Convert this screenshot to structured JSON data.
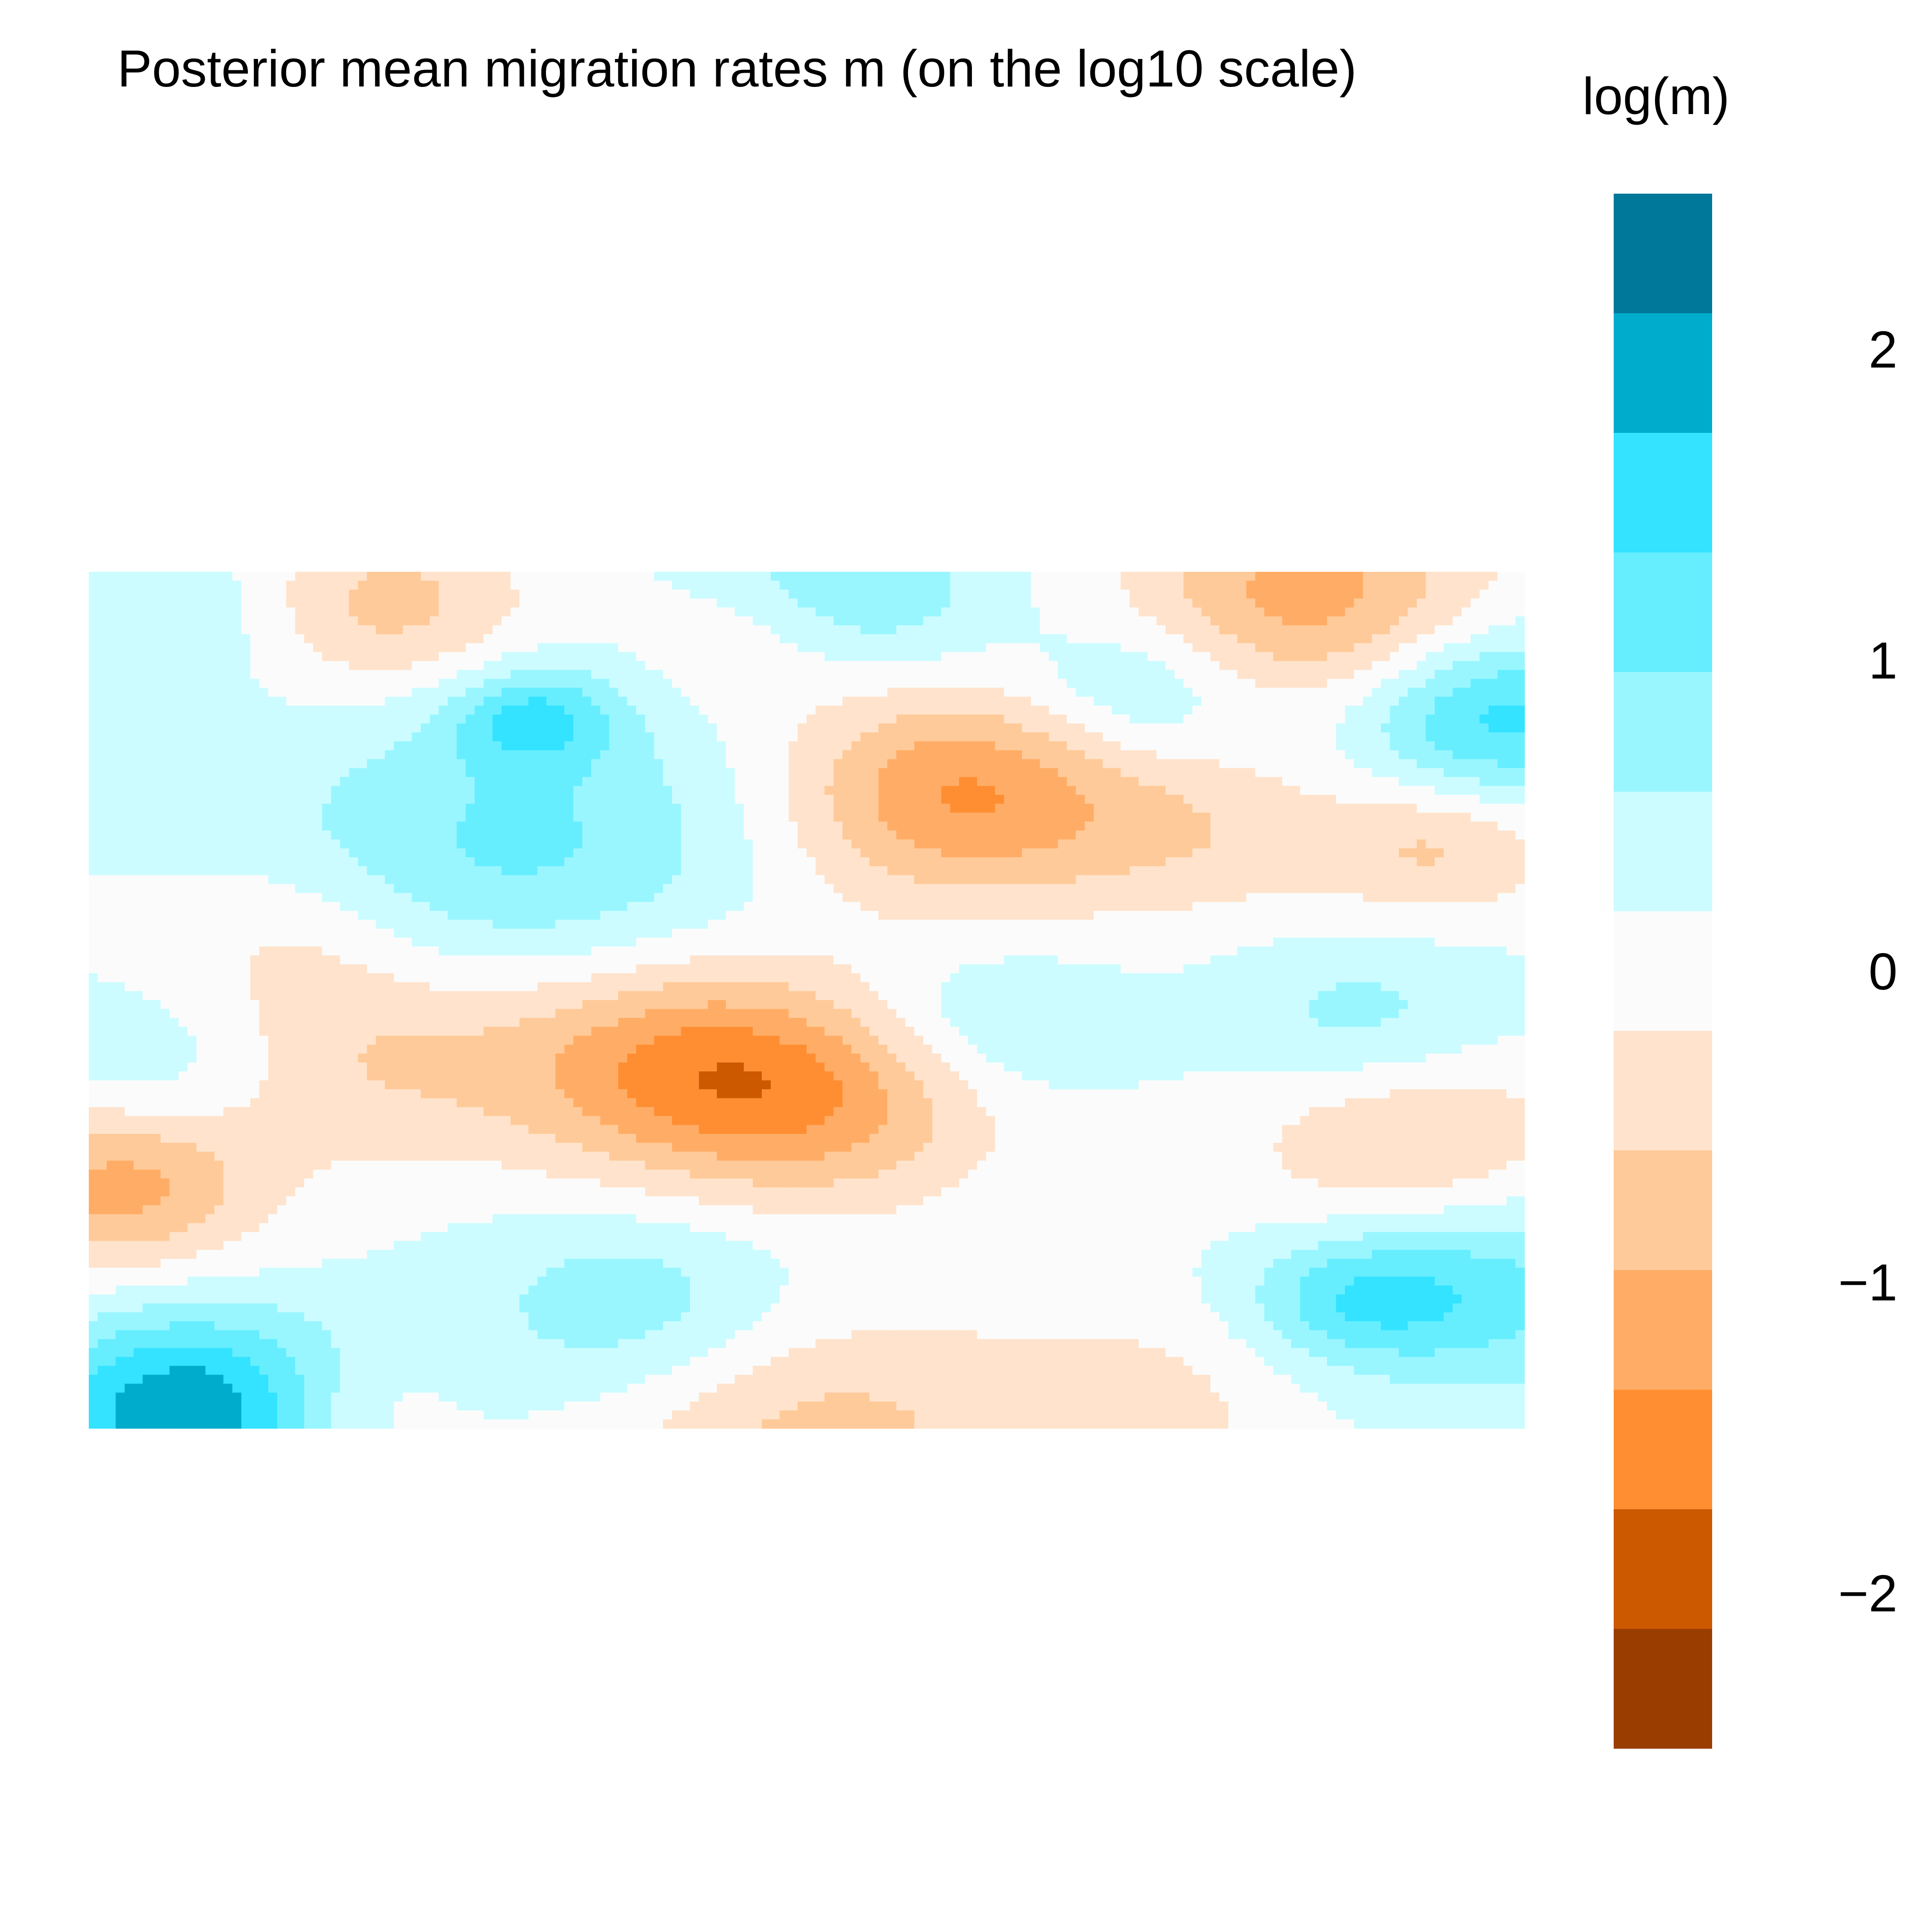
{
  "chart_data": {
    "type": "heatmap",
    "title": "Posterior mean migration rates m (on the log10 scale)",
    "colorbar": {
      "title": "log(m)",
      "range": [
        -2.5,
        2.5
      ],
      "ticks": [
        -2,
        -1,
        0,
        1,
        2
      ],
      "tick_labels": [
        "−2",
        "−1",
        "0",
        "1",
        "2"
      ],
      "levels": [
        {
          "from": 2.5,
          "to": 2.115,
          "color": "#00789A"
        },
        {
          "from": 2.115,
          "to": 1.731,
          "color": "#00ACCC"
        },
        {
          "from": 1.731,
          "to": 1.346,
          "color": "#33E3FF"
        },
        {
          "from": 1.346,
          "to": 0.962,
          "color": "#66EEFF"
        },
        {
          "from": 0.962,
          "to": 0.577,
          "color": "#99F6FF"
        },
        {
          "from": 0.577,
          "to": 0.192,
          "color": "#CCFCFF"
        },
        {
          "from": 0.192,
          "to": -0.192,
          "color": "#FBFBFB"
        },
        {
          "from": -0.192,
          "to": -0.577,
          "color": "#FFE3CC"
        },
        {
          "from": -0.577,
          "to": -0.962,
          "color": "#FFCA99"
        },
        {
          "from": -0.962,
          "to": -1.346,
          "color": "#FFAD66"
        },
        {
          "from": -1.346,
          "to": -1.731,
          "color": "#FF8E33"
        },
        {
          "from": -1.731,
          "to": -2.115,
          "color": "#CC5800"
        },
        {
          "from": -2.115,
          "to": -2.5,
          "color": "#9A3D00"
        }
      ]
    },
    "grid": false,
    "axes_visible": false,
    "legend_position": "right",
    "surface": {
      "baseline": 0.35,
      "features": [
        {
          "x": 0.05,
          "y": 0.58,
          "value": 0.6,
          "r": 0.06
        },
        {
          "x": 0.06,
          "y": 0.05,
          "value": 0.6,
          "r": 0.06
        },
        {
          "x": 0.3,
          "y": 0.32,
          "value": 1.05,
          "r": 0.12
        },
        {
          "x": 0.31,
          "y": 0.17,
          "value": 1.25,
          "r": 0.04
        },
        {
          "x": 0.52,
          "y": 0.03,
          "value": 1.2,
          "r": 0.07
        },
        {
          "x": 0.63,
          "y": 0.53,
          "value": 0.7,
          "r": 0.06
        },
        {
          "x": 0.73,
          "y": 0.14,
          "value": 0.9,
          "r": 0.06
        },
        {
          "x": 0.89,
          "y": 0.53,
          "value": 0.8,
          "r": 0.07
        },
        {
          "x": 0.98,
          "y": 0.17,
          "value": 1.55,
          "r": 0.07
        },
        {
          "x": 0.97,
          "y": 0.84,
          "value": 1.15,
          "r": 0.08
        },
        {
          "x": 0.07,
          "y": 0.98,
          "value": 2.1,
          "r": 0.08
        },
        {
          "x": 0.38,
          "y": 0.86,
          "value": 0.9,
          "r": 0.08
        },
        {
          "x": 0.88,
          "y": 0.85,
          "value": 1.0,
          "r": 0.05
        },
        {
          "x": 0.14,
          "y": 0.42,
          "value": -0.2,
          "r": 0.06
        },
        {
          "x": 0.2,
          "y": 0.56,
          "value": -0.6,
          "r": 0.09
        },
        {
          "x": 0.42,
          "y": 0.58,
          "value": -1.45,
          "r": 0.09
        },
        {
          "x": 0.53,
          "y": 0.63,
          "value": -0.65,
          "r": 0.08
        },
        {
          "x": 0.61,
          "y": 0.26,
          "value": -1.4,
          "r": 0.09
        },
        {
          "x": 0.47,
          "y": 0.07,
          "value": -0.5,
          "r": 0.06
        },
        {
          "x": 0.21,
          "y": 0.04,
          "value": -0.75,
          "r": 0.07
        },
        {
          "x": 0.85,
          "y": 0.03,
          "value": -1.15,
          "r": 0.09
        },
        {
          "x": 0.94,
          "y": 0.32,
          "value": -0.65,
          "r": 0.06
        },
        {
          "x": 0.78,
          "y": 0.31,
          "value": -0.35,
          "r": 0.07
        },
        {
          "x": 0.92,
          "y": 0.66,
          "value": -0.7,
          "r": 0.08
        },
        {
          "x": 0.02,
          "y": 0.72,
          "value": -1.1,
          "r": 0.07
        },
        {
          "x": 0.5,
          "y": 1.0,
          "value": -0.7,
          "r": 0.1
        },
        {
          "x": 0.72,
          "y": 0.98,
          "value": -0.4,
          "r": 0.08
        },
        {
          "x": 0.18,
          "y": 0.98,
          "value": -0.3,
          "r": 0.05
        }
      ]
    }
  }
}
